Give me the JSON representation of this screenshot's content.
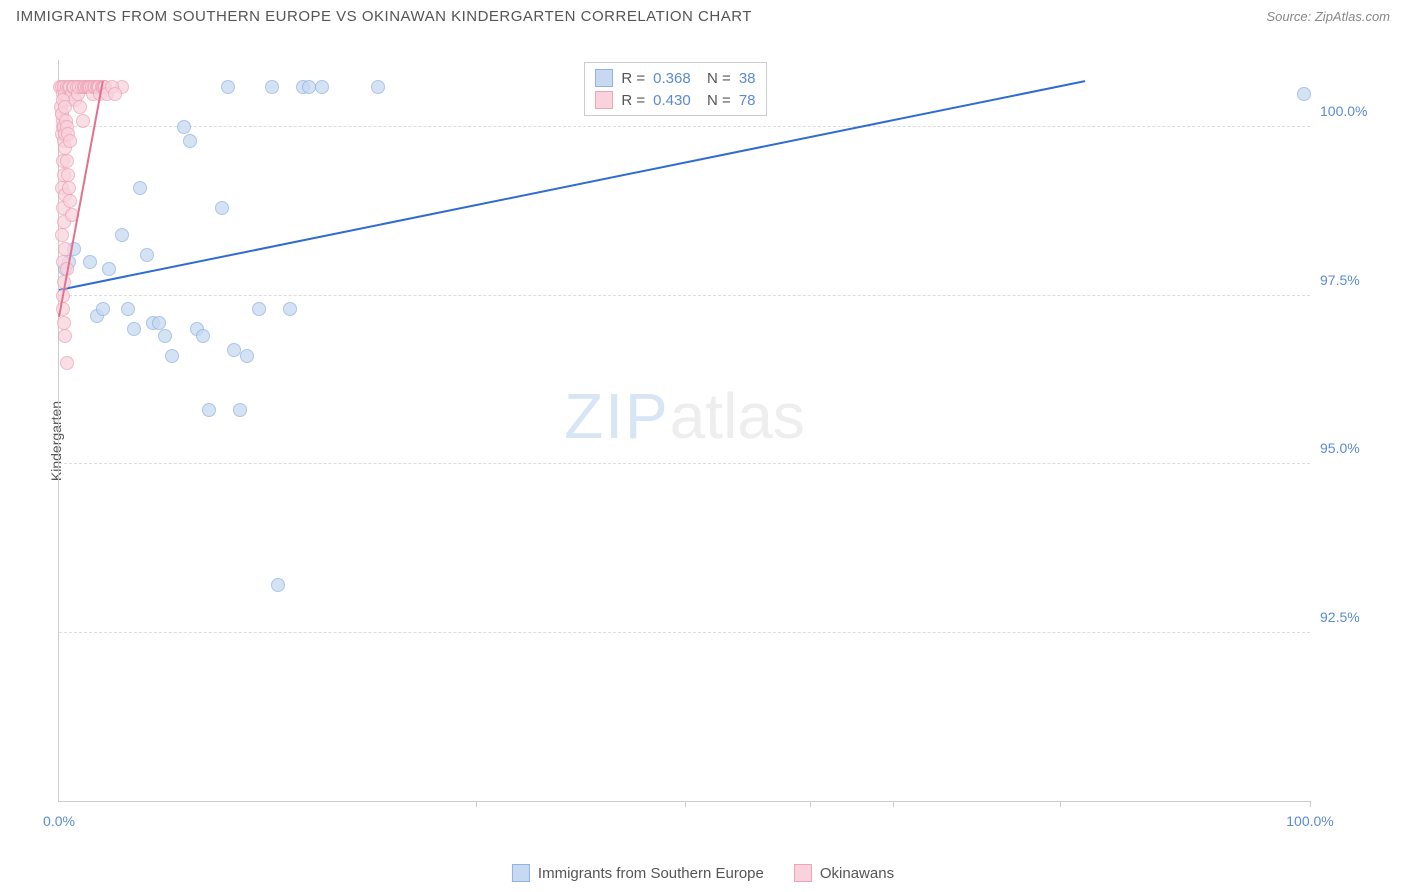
{
  "title": "IMMIGRANTS FROM SOUTHERN EUROPE VS OKINAWAN KINDERGARTEN CORRELATION CHART",
  "source": "Source: ZipAtlas.com",
  "ylabel": "Kindergarten",
  "watermark": {
    "zip": "ZIP",
    "atlas": "atlas"
  },
  "chart": {
    "type": "scatter",
    "xlim": [
      0,
      100
    ],
    "ylim": [
      90,
      101
    ],
    "x_ticks_shown": [
      0,
      100
    ],
    "x_tick_labels": [
      "0.0%",
      "100.0%"
    ],
    "x_minor_ticks": [
      33.3,
      50,
      60,
      66.7,
      80,
      100
    ],
    "y_grid": [
      92.5,
      95.0,
      97.5,
      100.0
    ],
    "y_grid_labels": [
      "92.5%",
      "95.0%",
      "97.5%",
      "100.0%"
    ],
    "background_color": "#ffffff",
    "grid_color": "#dddddd",
    "axis_color": "#cccccc",
    "tick_label_color": "#5b8bd4"
  },
  "series": [
    {
      "name": "Immigrants from Southern Europe",
      "color_fill": "#c6d9f1",
      "color_stroke": "#8fb3e2",
      "trend_color": "#2f6bd0",
      "r": "0.368",
      "n": "38",
      "trend": {
        "x1": 0,
        "y1": 97.6,
        "x2": 82,
        "y2": 100.7
      },
      "points": [
        [
          0.5,
          97.9
        ],
        [
          0.8,
          98.0
        ],
        [
          1.0,
          100.6
        ],
        [
          1.2,
          98.2
        ],
        [
          1.5,
          100.6
        ],
        [
          2.0,
          100.6
        ],
        [
          2.5,
          98.0
        ],
        [
          3.0,
          97.2
        ],
        [
          3.5,
          97.3
        ],
        [
          4.0,
          97.9
        ],
        [
          5.0,
          98.4
        ],
        [
          5.5,
          97.3
        ],
        [
          6.0,
          97.0
        ],
        [
          6.5,
          99.1
        ],
        [
          7.0,
          98.1
        ],
        [
          7.5,
          97.1
        ],
        [
          8.0,
          97.1
        ],
        [
          8.5,
          96.9
        ],
        [
          9.0,
          96.6
        ],
        [
          10.0,
          100.0
        ],
        [
          10.5,
          99.8
        ],
        [
          11.0,
          97.0
        ],
        [
          11.5,
          96.9
        ],
        [
          12.0,
          95.8
        ],
        [
          13.0,
          98.8
        ],
        [
          13.5,
          100.6
        ],
        [
          14.0,
          96.7
        ],
        [
          14.5,
          95.8
        ],
        [
          15.0,
          96.6
        ],
        [
          16.0,
          97.3
        ],
        [
          17.0,
          100.6
        ],
        [
          18.5,
          97.3
        ],
        [
          19.5,
          100.6
        ],
        [
          20.0,
          100.6
        ],
        [
          21.0,
          100.6
        ],
        [
          25.5,
          100.6
        ],
        [
          17.5,
          93.2
        ],
        [
          99.5,
          100.5
        ]
      ]
    },
    {
      "name": "Okinawans",
      "color_fill": "#f8d3dd",
      "color_stroke": "#eea3b7",
      "trend_color": "#e2718f",
      "r": "0.430",
      "n": "78",
      "trend": {
        "x1": 0,
        "y1": 97.2,
        "x2": 3.5,
        "y2": 100.7
      },
      "points": [
        [
          0.1,
          100.6
        ],
        [
          0.2,
          100.6
        ],
        [
          0.3,
          100.5
        ],
        [
          0.4,
          100.6
        ],
        [
          0.5,
          100.5
        ],
        [
          0.6,
          100.6
        ],
        [
          0.7,
          100.4
        ],
        [
          0.8,
          100.6
        ],
        [
          0.9,
          100.6
        ],
        [
          1.0,
          100.5
        ],
        [
          1.1,
          100.6
        ],
        [
          1.2,
          100.6
        ],
        [
          1.3,
          100.4
        ],
        [
          1.4,
          100.6
        ],
        [
          1.5,
          100.5
        ],
        [
          1.6,
          100.6
        ],
        [
          1.7,
          100.3
        ],
        [
          1.8,
          100.6
        ],
        [
          1.9,
          100.1
        ],
        [
          2.0,
          100.6
        ],
        [
          2.1,
          100.6
        ],
        [
          2.2,
          100.6
        ],
        [
          2.3,
          100.6
        ],
        [
          2.4,
          100.6
        ],
        [
          2.5,
          100.6
        ],
        [
          2.6,
          100.6
        ],
        [
          2.7,
          100.5
        ],
        [
          2.8,
          100.6
        ],
        [
          2.9,
          100.6
        ],
        [
          3.0,
          100.6
        ],
        [
          3.1,
          100.6
        ],
        [
          3.2,
          100.6
        ],
        [
          3.3,
          100.5
        ],
        [
          3.4,
          100.6
        ],
        [
          3.5,
          100.6
        ],
        [
          3.6,
          100.6
        ],
        [
          3.7,
          100.6
        ],
        [
          3.8,
          100.5
        ],
        [
          0.2,
          99.9
        ],
        [
          0.3,
          100.0
        ],
        [
          0.4,
          99.8
        ],
        [
          0.3,
          99.5
        ],
        [
          0.4,
          99.3
        ],
        [
          0.2,
          99.1
        ],
        [
          0.5,
          99.0
        ],
        [
          0.3,
          98.8
        ],
        [
          0.4,
          98.6
        ],
        [
          0.2,
          98.4
        ],
        [
          0.5,
          98.2
        ],
        [
          0.3,
          98.0
        ],
        [
          0.6,
          97.9
        ],
        [
          0.4,
          97.7
        ],
        [
          0.3,
          97.5
        ],
        [
          0.5,
          96.9
        ],
        [
          0.6,
          96.5
        ],
        [
          5.0,
          100.6
        ],
        [
          4.2,
          100.6
        ],
        [
          4.5,
          100.5
        ],
        [
          0.3,
          97.3
        ],
        [
          0.4,
          97.1
        ],
        [
          0.5,
          99.7
        ],
        [
          0.6,
          99.5
        ],
        [
          0.7,
          99.3
        ],
        [
          0.8,
          99.1
        ],
        [
          0.9,
          98.9
        ],
        [
          1.0,
          98.7
        ],
        [
          0.2,
          100.2
        ],
        [
          0.3,
          100.1
        ],
        [
          0.4,
          100.0
        ],
        [
          0.5,
          99.9
        ],
        [
          0.15,
          100.3
        ],
        [
          0.25,
          100.2
        ],
        [
          0.35,
          100.4
        ],
        [
          0.45,
          100.3
        ],
        [
          0.55,
          100.1
        ],
        [
          0.65,
          100.0
        ],
        [
          0.75,
          99.9
        ],
        [
          0.85,
          99.8
        ]
      ]
    }
  ],
  "legend_bottom": [
    {
      "label": "Immigrants from Southern Europe",
      "fill": "#c6d9f1",
      "stroke": "#8fb3e2"
    },
    {
      "label": "Okinawans",
      "fill": "#f8d3dd",
      "stroke": "#eea3b7"
    }
  ]
}
